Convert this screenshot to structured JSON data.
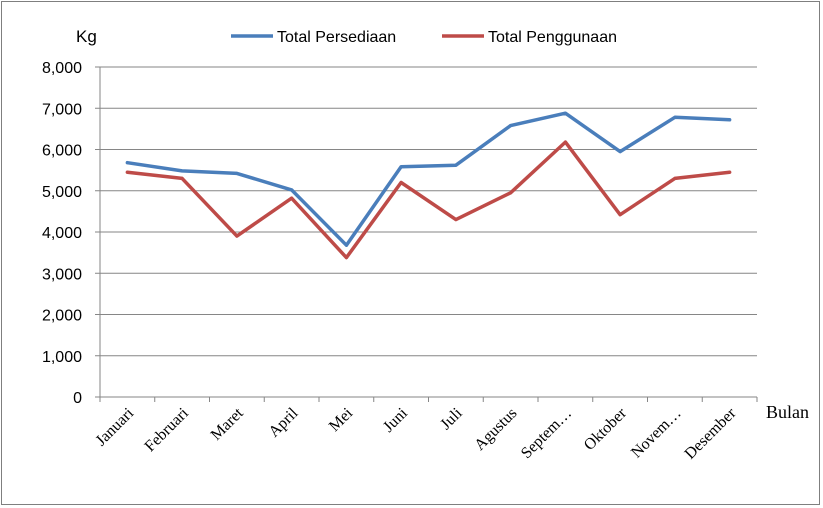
{
  "chart_data": {
    "type": "line",
    "title": "",
    "ylabel": "Kg",
    "xlabel": "Bulan",
    "ylim": [
      0,
      8000
    ],
    "yticks": [
      0,
      1000,
      2000,
      3000,
      4000,
      5000,
      6000,
      7000,
      8000
    ],
    "ytick_labels": [
      "0",
      "1,000",
      "2,000",
      "3,000",
      "4,000",
      "5,000",
      "6,000",
      "7,000",
      "8,000"
    ],
    "categories": [
      "Januari",
      "Februari",
      "Maret",
      "April",
      "Mei",
      "Juni",
      "Juli",
      "Agustus",
      "Septem…",
      "Oktober",
      "Novem…",
      "Desember"
    ],
    "grid": true,
    "legend_position": "top",
    "series": [
      {
        "name": "Total Persediaan",
        "color": "#4a7ebb",
        "values": [
          5680,
          5480,
          5420,
          5020,
          3680,
          5580,
          5620,
          6580,
          6880,
          5950,
          6780,
          6720
        ]
      },
      {
        "name": "Total Penggunaan",
        "color": "#be4b48",
        "values": [
          5450,
          5300,
          3900,
          4820,
          3380,
          5200,
          4300,
          4950,
          6180,
          4420,
          5300,
          5450
        ]
      }
    ]
  }
}
